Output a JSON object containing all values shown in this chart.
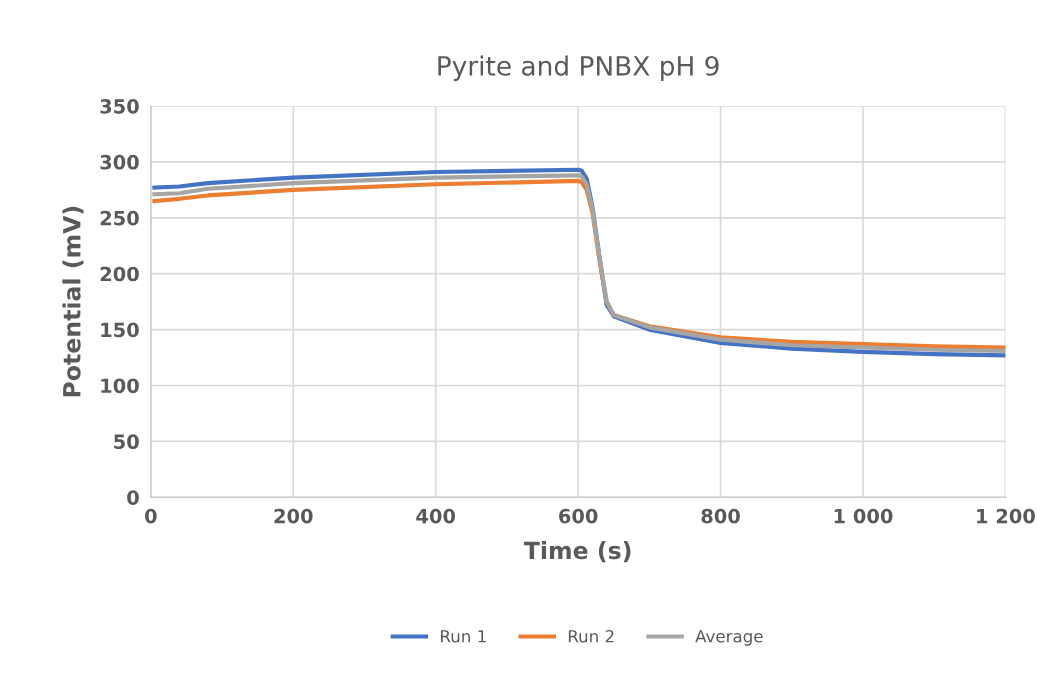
{
  "chart_data": {
    "type": "line",
    "title": "Pyrite and PNBX pH 9",
    "xlabel": "Time (s)",
    "ylabel": "Potential (mV)",
    "xlim": [
      0,
      1200
    ],
    "xticks": [
      0,
      200,
      400,
      600,
      800,
      {
        "value": 1000,
        "label": "1 000"
      },
      {
        "value": 1200,
        "label": "1 200"
      }
    ],
    "ylim": [
      0,
      350
    ],
    "yticks": [
      0,
      50,
      100,
      150,
      200,
      250,
      300,
      350
    ],
    "grid": true,
    "legend": "bottom",
    "marker": "none",
    "line_style": "solid",
    "x": [
      5,
      40,
      80,
      200,
      400,
      600,
      605,
      612,
      620,
      630,
      640,
      650,
      700,
      800,
      900,
      1000,
      1100,
      1200
    ],
    "series": [
      {
        "name": "Run 1",
        "color": "#4472c4",
        "values": [
          277,
          278,
          281,
          286,
          291,
          293,
          292,
          285,
          260,
          215,
          172,
          162,
          150,
          138,
          133,
          130,
          128,
          127
        ]
      },
      {
        "name": "Run 2",
        "color": "#ed7d31",
        "values": [
          265,
          267,
          270,
          275,
          280,
          283,
          282,
          275,
          255,
          212,
          175,
          163,
          153,
          143,
          139,
          137,
          135,
          134
        ]
      },
      {
        "name": "Average",
        "color": "#a5a5a5",
        "values": [
          271,
          272,
          276,
          281,
          286,
          288,
          287,
          280,
          258,
          214,
          175,
          163,
          152,
          141,
          136,
          134,
          132,
          131
        ]
      }
    ]
  }
}
